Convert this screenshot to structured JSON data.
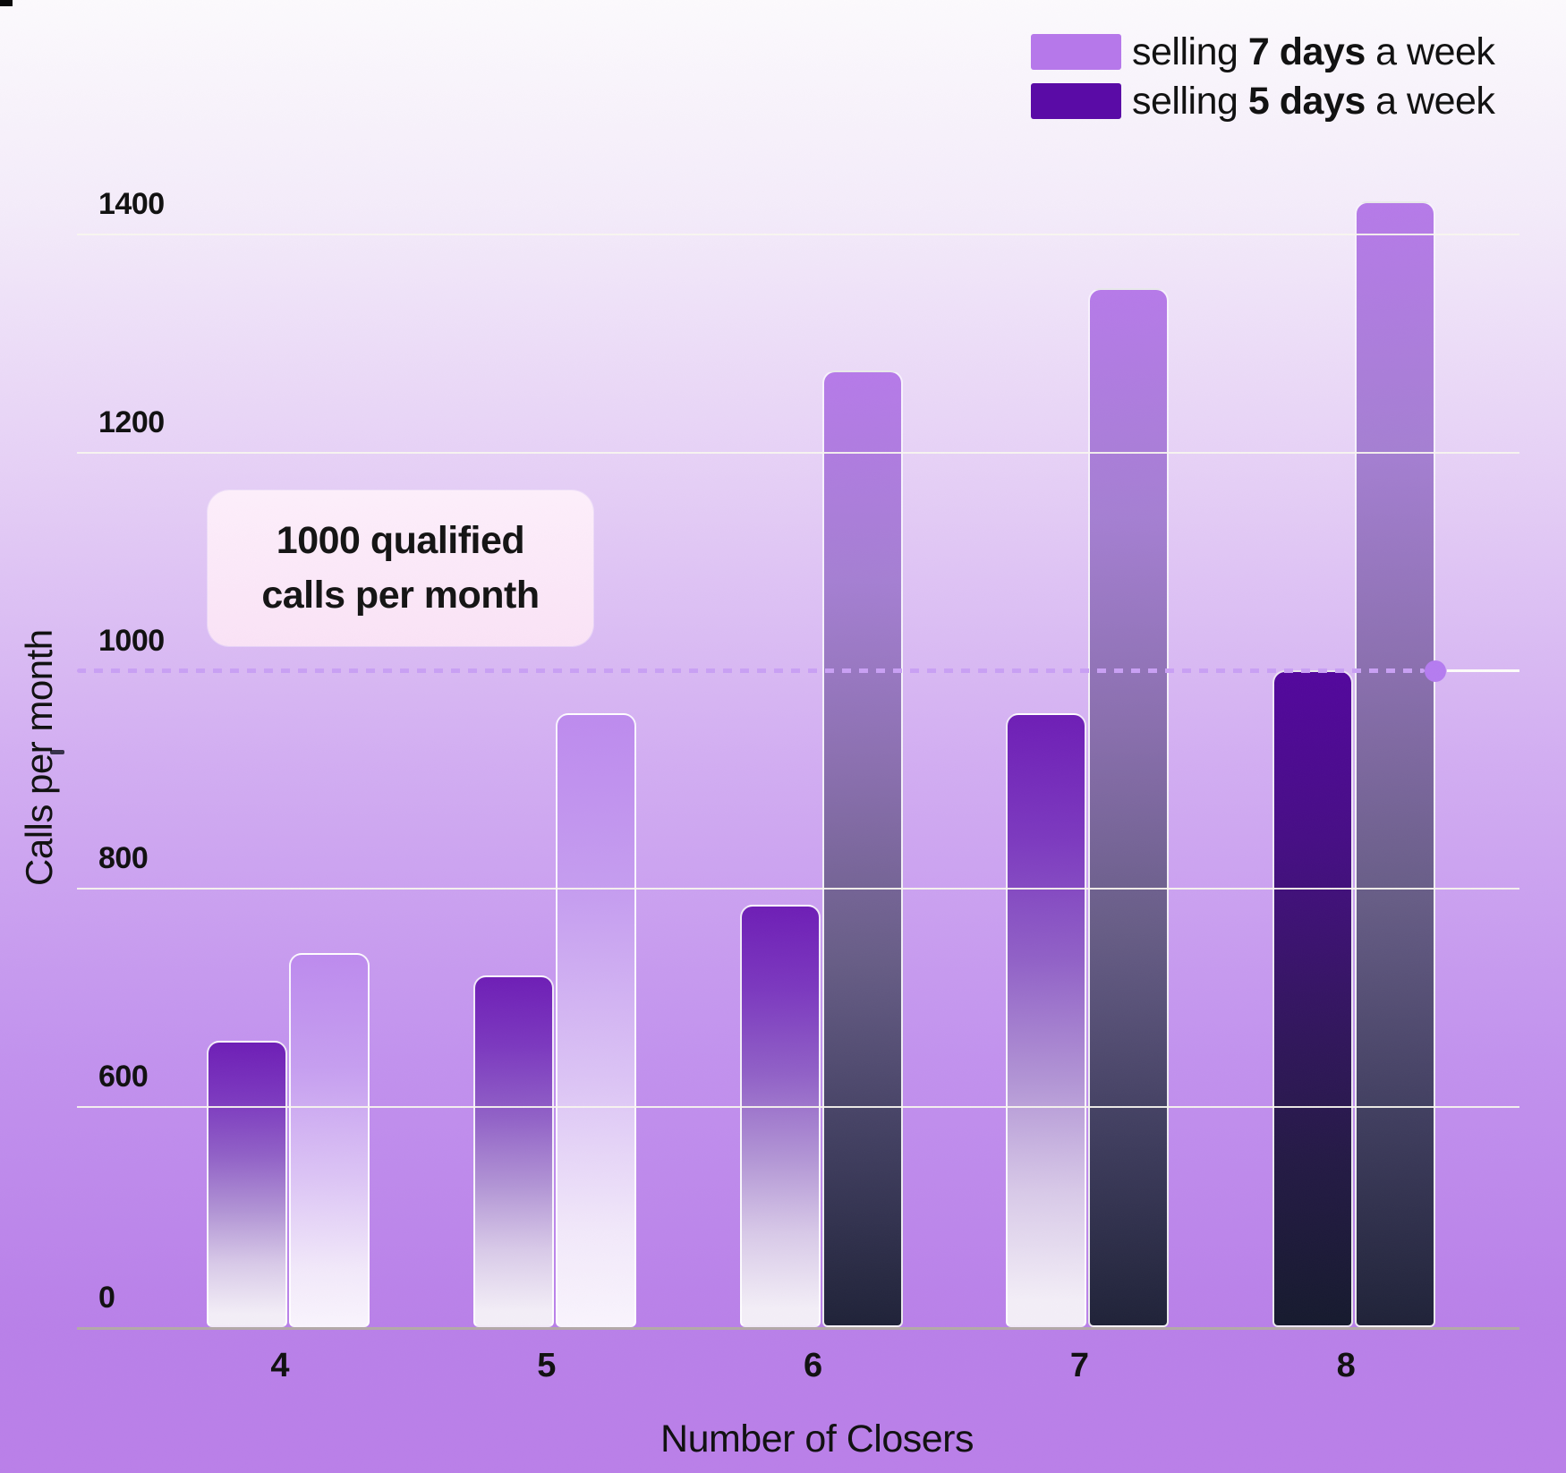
{
  "chart_data": {
    "type": "bar",
    "categories": [
      "4",
      "5",
      "6",
      "7",
      "8"
    ],
    "series": [
      {
        "name": "selling 7 days a week",
        "color": "#b678ea",
        "values": [
          740,
          960,
          1275,
          1350,
          1430
        ]
      },
      {
        "name": "selling 5 days a week",
        "color": "#5a0ba6",
        "values": [
          660,
          720,
          785,
          960,
          1000
        ]
      }
    ],
    "xlabel": "Number of Closers",
    "ylabel": "Calls per month",
    "yticks": [
      0,
      600,
      800,
      1000,
      1200,
      1400
    ],
    "ylim": [
      0,
      1480
    ],
    "grid": true,
    "legend_position": "top-right",
    "threshold_line": {
      "value": 1000,
      "style": "dashed",
      "end_dot": true
    }
  },
  "legend": {
    "row7": {
      "prefix": "selling ",
      "bold": "7 days",
      "suffix": " a week",
      "color": "#b678ea"
    },
    "row5": {
      "prefix": "selling ",
      "bold": "5 days",
      "suffix": " a week",
      "color": "#5a0ba6"
    }
  },
  "annotation": {
    "line1": "1000 qualified",
    "line2": "calls per month"
  },
  "axes": {
    "y_title": "Calls per month",
    "x_title": "Number of Closers"
  },
  "colors": {
    "legend_light": "#b678ea",
    "legend_dark": "#5a0ba6",
    "dashed_line": "#c9a0f4",
    "dot": "#b57cf0",
    "text": "#121212",
    "annotation_bg": "#fbe7f8"
  }
}
